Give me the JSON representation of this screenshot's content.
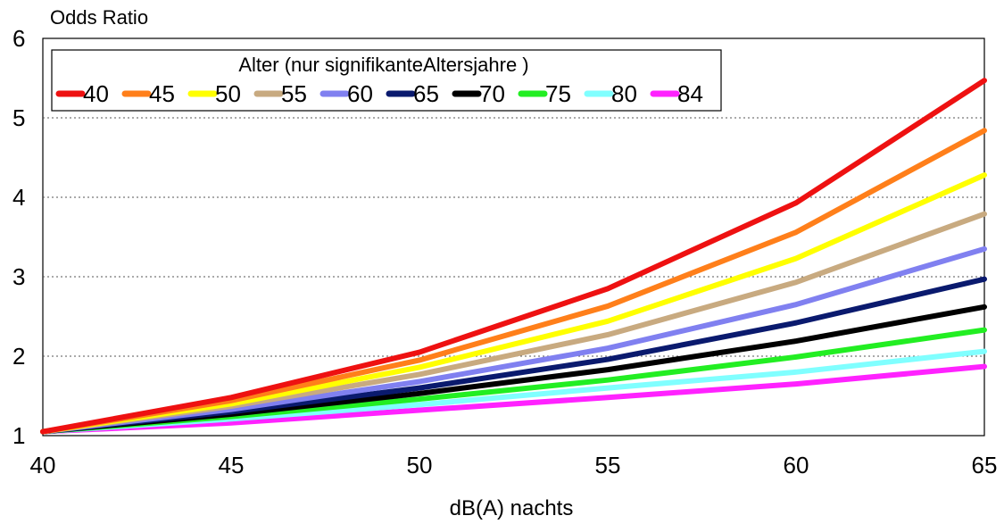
{
  "chart_data": {
    "type": "line",
    "title": "Odds Ratio",
    "xlabel": "dB(A) nachts",
    "ylabel": "",
    "x": [
      40,
      45,
      50,
      55,
      60,
      65
    ],
    "xticks": [
      "40",
      "45",
      "50",
      "55",
      "60",
      "65"
    ],
    "yticks": [
      "1",
      "2",
      "3",
      "4",
      "5",
      "6"
    ],
    "xlim": [
      40,
      65
    ],
    "ylim": [
      1,
      6
    ],
    "grid": "horizontal dotted",
    "legend": {
      "title": "Alter (nur signifikanteAltersjahre )",
      "position": "top-left"
    },
    "series": [
      {
        "name": "40",
        "color": "#ee1111",
        "values": [
          1.05,
          1.48,
          2.05,
          2.85,
          3.93,
          5.47
        ]
      },
      {
        "name": "45",
        "color": "#ff7f1a",
        "values": [
          1.05,
          1.44,
          1.95,
          2.63,
          3.56,
          4.84
        ]
      },
      {
        "name": "50",
        "color": "#ffff00",
        "values": [
          1.05,
          1.4,
          1.86,
          2.44,
          3.23,
          4.28
        ]
      },
      {
        "name": "55",
        "color": "#c8aa80",
        "values": [
          1.05,
          1.37,
          1.77,
          2.27,
          2.93,
          3.79
        ]
      },
      {
        "name": "60",
        "color": "#8080f0",
        "values": [
          1.05,
          1.33,
          1.68,
          2.1,
          2.65,
          3.35
        ]
      },
      {
        "name": "65",
        "color": "#0a1a6e",
        "values": [
          1.05,
          1.3,
          1.6,
          1.96,
          2.42,
          2.97
        ]
      },
      {
        "name": "70",
        "color": "#000000",
        "values": [
          1.05,
          1.27,
          1.53,
          1.83,
          2.19,
          2.62
        ]
      },
      {
        "name": "75",
        "color": "#22ee22",
        "values": [
          1.05,
          1.24,
          1.46,
          1.7,
          1.99,
          2.33
        ]
      },
      {
        "name": "80",
        "color": "#80ffff",
        "values": [
          1.05,
          1.21,
          1.39,
          1.6,
          1.8,
          2.06
        ]
      },
      {
        "name": "84",
        "color": "#ff22ff",
        "values": [
          1.05,
          1.16,
          1.32,
          1.48,
          1.65,
          1.87
        ]
      }
    ]
  }
}
